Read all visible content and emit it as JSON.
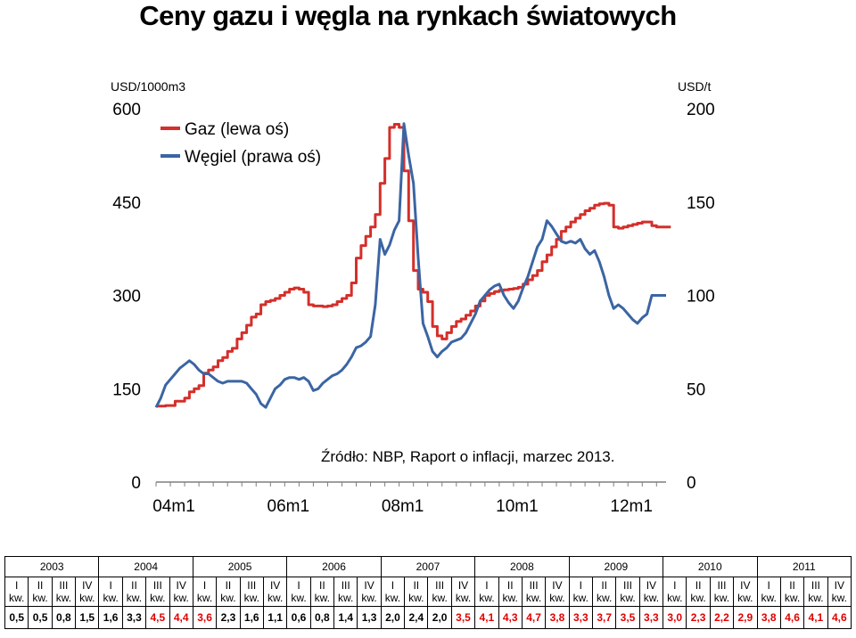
{
  "title": "Ceny gazu i węgla na rynkach światowych",
  "colors": {
    "gas": "#d42f2a",
    "coal": "#3b65a3",
    "axis": "#7f7f7f",
    "highlight": "#e00000"
  },
  "chart_data": {
    "type": "line",
    "y_left_label": "USD/1000m3",
    "y_right_label": "USD/t",
    "y_left_ticks": [
      "0",
      "150",
      "300",
      "450",
      "600"
    ],
    "y_right_ticks": [
      "0",
      "50",
      "100",
      "150",
      "200"
    ],
    "ylim_left": [
      0,
      600
    ],
    "ylim_right": [
      0,
      200
    ],
    "x_ticks": [
      {
        "label": "04m1",
        "month": 0
      },
      {
        "label": "06m1",
        "month": 24
      },
      {
        "label": "08m1",
        "month": 48
      },
      {
        "label": "10m1",
        "month": 72
      },
      {
        "label": "12m1",
        "month": 96
      }
    ],
    "x_range": [
      0,
      107
    ],
    "legend": "top-left",
    "source_note": "Źródło: NBP, Raport o inflacji, marzec 2013.",
    "series": [
      {
        "name": "Gaz (lewa oś)",
        "axis": "left",
        "values": [
          122,
          122,
          123,
          123,
          130,
          130,
          135,
          145,
          150,
          155,
          175,
          180,
          185,
          195,
          200,
          210,
          215,
          230,
          240,
          252,
          265,
          270,
          285,
          290,
          292,
          295,
          300,
          305,
          310,
          312,
          310,
          305,
          285,
          283,
          283,
          282,
          283,
          285,
          290,
          295,
          300,
          320,
          360,
          380,
          395,
          410,
          430,
          480,
          520,
          570,
          575,
          570,
          500,
          420,
          340,
          310,
          305,
          290,
          250,
          235,
          230,
          240,
          250,
          258,
          262,
          268,
          275,
          283,
          291,
          300,
          303,
          306,
          308,
          309,
          310,
          311,
          313,
          318,
          325,
          332,
          340,
          354,
          365,
          378,
          390,
          403,
          410,
          418,
          424,
          430,
          436,
          440,
          445,
          447,
          448,
          445,
          410,
          408,
          410,
          412,
          414,
          416,
          418,
          418,
          412,
          410,
          410,
          410
        ]
      },
      {
        "name": "Węgiel (prawa oś)",
        "axis": "right",
        "values": [
          40,
          45,
          52,
          55,
          58,
          61,
          63,
          65,
          63,
          60,
          58,
          58,
          56,
          54,
          53,
          54,
          54,
          54,
          54,
          53,
          50,
          47,
          42,
          40,
          45,
          50,
          52,
          55,
          56,
          56,
          55,
          56,
          54,
          49,
          50,
          53,
          55,
          57,
          58,
          60,
          63,
          67,
          72,
          73,
          75,
          78,
          95,
          130,
          122,
          127,
          135,
          140,
          192,
          175,
          160,
          120,
          85,
          78,
          70,
          67,
          70,
          72,
          75,
          76,
          77,
          80,
          85,
          90,
          97,
          100,
          103,
          105,
          106,
          100,
          96,
          93,
          97,
          104,
          110,
          118,
          126,
          130,
          140,
          137,
          133,
          129,
          128,
          129,
          128,
          130,
          125,
          122,
          124,
          118,
          110,
          100,
          93,
          95,
          93,
          90,
          87,
          85,
          88,
          90,
          100,
          100,
          100,
          100
        ]
      }
    ]
  },
  "table": {
    "years": [
      "2003",
      "2004",
      "2005",
      "2006",
      "2007",
      "2008",
      "2009",
      "2010",
      "2011"
    ],
    "quarter_labels": [
      "I",
      "II",
      "III",
      "IV"
    ],
    "quarter_suffix": "kw.",
    "values": [
      "0,5",
      "0,5",
      "0,8",
      "1,5",
      "1,6",
      "3,3",
      "4,5",
      "4,4",
      "3,6",
      "2,3",
      "1,6",
      "1,1",
      "0,6",
      "0,8",
      "1,4",
      "1,3",
      "2,0",
      "2,4",
      "2,0",
      "3,5",
      "4,1",
      "4,3",
      "4,7",
      "3,8",
      "3,3",
      "3,7",
      "3,5",
      "3,3",
      "3,0",
      "2,3",
      "2,2",
      "2,9",
      "3,8",
      "4,6",
      "4,1",
      "4,6"
    ],
    "highlight_indices": [
      6,
      7,
      8,
      19,
      20,
      21,
      22,
      23,
      24,
      25,
      26,
      27,
      28,
      29,
      30,
      31,
      32,
      33,
      34,
      35
    ]
  }
}
